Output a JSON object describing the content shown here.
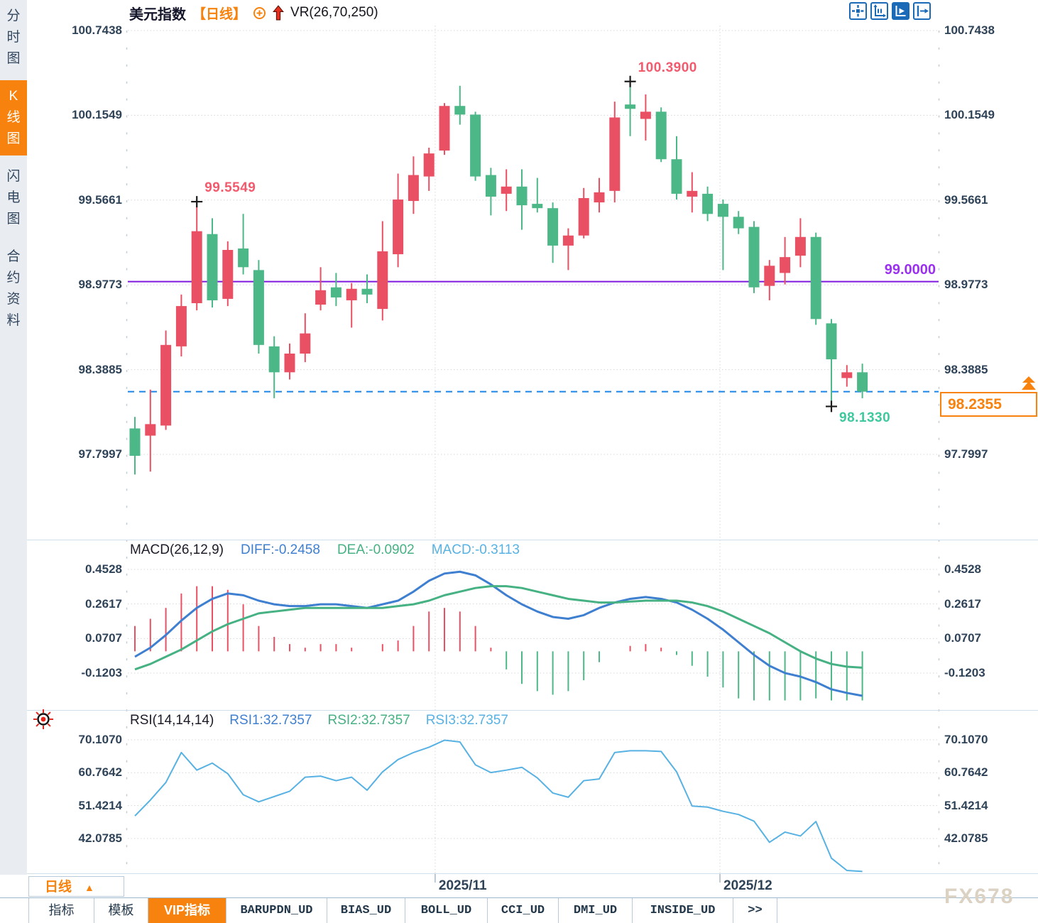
{
  "app": {
    "watermark": "FX678"
  },
  "colors": {
    "up": "#ea5064",
    "down": "#4cb787",
    "accent_orange": "#f8820e",
    "diff_line": "#3f7fd0",
    "dea_line": "#46b183",
    "macd_label": "#57b2e3",
    "rsi_line": "#57b2e3",
    "purple_hline": "#7d18dc",
    "blue_dashed_hline": "#1b84e8",
    "annotation_red": "#f25a6e",
    "annotation_green": "#3ec89e",
    "axis_text": "#2f4358"
  },
  "sidebar": {
    "tabs": [
      {
        "label": "分时图",
        "active": false
      },
      {
        "label": "K线图",
        "active": true
      },
      {
        "label": "闪电图",
        "active": false
      },
      {
        "label": "合约资料",
        "active": false
      }
    ]
  },
  "header": {
    "symbol": "美元指数",
    "period_tag": "【日线】",
    "vr_indicator": "VR(26,70,250)"
  },
  "toolbar": {
    "icons": [
      "crosshair-icon",
      "axis-range-icon",
      "autoscale-icon",
      "pan-right-icon"
    ]
  },
  "macd_header": {
    "title": "MACD(26,12,9)",
    "diff": "DIFF:-0.2458",
    "dea": "DEA:-0.0902",
    "macd": "MACD:-0.3113"
  },
  "rsi_header": {
    "title": "RSI(14,14,14)",
    "rsi1": "RSI1:32.7357",
    "rsi2": "RSI2:32.7357",
    "rsi3": "RSI3:32.7357"
  },
  "period_selector": {
    "label": "日线",
    "arrow": "▲"
  },
  "bottom_tabs": [
    {
      "label": "指标",
      "active": false
    },
    {
      "label": "模板",
      "active": false
    },
    {
      "label": "VIP指标",
      "active": true
    },
    {
      "label": "BARUPDN_UD",
      "active": false
    },
    {
      "label": "BIAS_UD",
      "active": false
    },
    {
      "label": "BOLL_UD",
      "active": false
    },
    {
      "label": "CCI_UD",
      "active": false
    },
    {
      "label": "DMI_UD",
      "active": false
    },
    {
      "label": "INSIDE_UD",
      "active": false
    },
    {
      "label": ">>",
      "active": false
    }
  ],
  "chart_data": {
    "type": "candlestick",
    "title": "美元指数 日线",
    "x_ticks": [
      {
        "label": "2025/11",
        "bar": 19.4
      },
      {
        "label": "2025/12",
        "bar": 37.8
      }
    ],
    "panels": [
      {
        "id": "price",
        "type": "candlestick",
        "y_ticks": [
          "100.7438",
          "100.1549",
          "99.5661",
          "98.9773",
          "98.3885",
          "97.7997"
        ],
        "open": [
          97.98,
          97.93,
          98.0,
          98.55,
          98.85,
          99.33,
          98.88,
          99.23,
          99.08,
          98.55,
          98.37,
          98.5,
          98.84,
          98.96,
          98.87,
          98.95,
          98.81,
          99.19,
          99.56,
          99.73,
          99.91,
          100.22,
          100.16,
          99.74,
          99.61,
          99.66,
          99.54,
          99.51,
          99.25,
          99.32,
          99.55,
          99.63,
          100.23,
          100.13,
          100.18,
          99.85,
          99.59,
          99.61,
          99.54,
          99.45,
          99.38,
          98.97,
          99.06,
          99.18,
          99.31,
          98.71,
          98.33,
          98.37
        ],
        "high": [
          98.06,
          98.25,
          98.66,
          98.91,
          99.5549,
          99.44,
          99.28,
          99.47,
          99.15,
          98.62,
          98.57,
          98.78,
          99.1,
          99.06,
          98.99,
          99.05,
          99.42,
          99.75,
          99.87,
          99.93,
          100.24,
          100.36,
          100.18,
          99.79,
          99.78,
          99.78,
          99.72,
          99.55,
          99.37,
          99.65,
          99.72,
          100.25,
          100.39,
          100.3,
          100.21,
          100.01,
          99.76,
          99.66,
          99.57,
          99.49,
          99.42,
          99.15,
          99.31,
          99.44,
          99.34,
          98.74,
          98.42,
          98.43
        ],
        "low": [
          97.66,
          97.68,
          97.97,
          98.48,
          98.8,
          98.82,
          98.83,
          99.05,
          98.5,
          98.19,
          98.32,
          98.44,
          98.8,
          98.83,
          98.68,
          98.85,
          98.73,
          99.1,
          99.47,
          99.63,
          99.88,
          100.09,
          99.7,
          99.46,
          99.49,
          99.36,
          99.48,
          99.13,
          99.08,
          99.3,
          99.48,
          99.55,
          100.01,
          99.98,
          99.83,
          99.57,
          99.48,
          99.42,
          99.08,
          99.33,
          98.92,
          98.87,
          98.98,
          99.1,
          98.7,
          98.133,
          98.27,
          98.19
        ],
        "close": [
          97.79,
          98.01,
          98.56,
          98.83,
          99.35,
          98.87,
          99.22,
          99.1,
          98.56,
          98.37,
          98.5,
          98.64,
          98.94,
          98.89,
          98.95,
          98.91,
          99.21,
          99.57,
          99.74,
          99.89,
          100.22,
          100.16,
          99.73,
          99.59,
          99.66,
          99.53,
          99.51,
          99.25,
          99.32,
          99.58,
          99.62,
          100.14,
          100.2,
          100.18,
          99.85,
          99.61,
          99.63,
          99.47,
          99.45,
          99.37,
          98.96,
          99.11,
          99.17,
          99.31,
          98.74,
          98.46,
          98.37,
          98.2355
        ],
        "annotations": [
          {
            "id": "pivot-high",
            "text": "99.5549",
            "bar": 4,
            "price": 99.5549,
            "color": "#f25a6e",
            "side": "above"
          },
          {
            "id": "swing-high",
            "text": "100.3900",
            "bar": 32,
            "price": 100.39,
            "color": "#f25a6e",
            "side": "above"
          },
          {
            "id": "swing-low",
            "text": "98.1330",
            "bar": 45,
            "price": 98.133,
            "color": "#3ec89e",
            "side": "below"
          }
        ],
        "hlines": [
          {
            "label": "99.0000",
            "price": 99.0,
            "color": "#7d18dc",
            "style": "solid"
          },
          {
            "label": "98.2355",
            "price": 98.2355,
            "color": "#1b84e8",
            "style": "dashed",
            "is_last_price": true
          }
        ]
      },
      {
        "id": "macd",
        "type": "macd",
        "y_ticks": [
          "0.4528",
          "0.2617",
          "0.0707",
          "-0.1203"
        ],
        "diff": [
          -0.03,
          0.02,
          0.09,
          0.17,
          0.24,
          0.29,
          0.32,
          0.31,
          0.28,
          0.26,
          0.25,
          0.25,
          0.26,
          0.26,
          0.25,
          0.24,
          0.26,
          0.28,
          0.33,
          0.39,
          0.43,
          0.44,
          0.42,
          0.37,
          0.31,
          0.26,
          0.22,
          0.19,
          0.18,
          0.2,
          0.24,
          0.27,
          0.29,
          0.3,
          0.29,
          0.27,
          0.23,
          0.18,
          0.12,
          0.05,
          -0.02,
          -0.08,
          -0.12,
          -0.14,
          -0.17,
          -0.21,
          -0.23,
          -0.2458
        ],
        "dea": [
          -0.1,
          -0.07,
          -0.03,
          0.01,
          0.06,
          0.11,
          0.15,
          0.18,
          0.21,
          0.22,
          0.23,
          0.24,
          0.24,
          0.24,
          0.24,
          0.24,
          0.24,
          0.25,
          0.26,
          0.28,
          0.31,
          0.33,
          0.35,
          0.36,
          0.36,
          0.35,
          0.33,
          0.31,
          0.29,
          0.28,
          0.27,
          0.27,
          0.275,
          0.28,
          0.28,
          0.28,
          0.27,
          0.25,
          0.22,
          0.18,
          0.14,
          0.1,
          0.05,
          0.0,
          -0.04,
          -0.07,
          -0.085,
          -0.0902
        ]
      },
      {
        "id": "rsi",
        "type": "line",
        "y_ticks": [
          "70.1070",
          "60.7642",
          "51.4214",
          "42.0785"
        ],
        "rsi": [
          48.5,
          53.0,
          58.0,
          66.5,
          61.5,
          63.5,
          60.5,
          54.5,
          52.5,
          54.0,
          55.5,
          59.5,
          59.8,
          58.5,
          59.5,
          55.8,
          61.0,
          64.5,
          66.5,
          68.0,
          70.0,
          69.5,
          63.0,
          60.8,
          61.5,
          62.3,
          59.3,
          55.0,
          53.8,
          58.5,
          59.0,
          66.5,
          67.0,
          67.0,
          66.8,
          61.0,
          51.3,
          51.0,
          49.8,
          48.9,
          47.0,
          41.0,
          43.9,
          42.8,
          46.9,
          36.5,
          33.0,
          32.7357
        ]
      }
    ]
  }
}
